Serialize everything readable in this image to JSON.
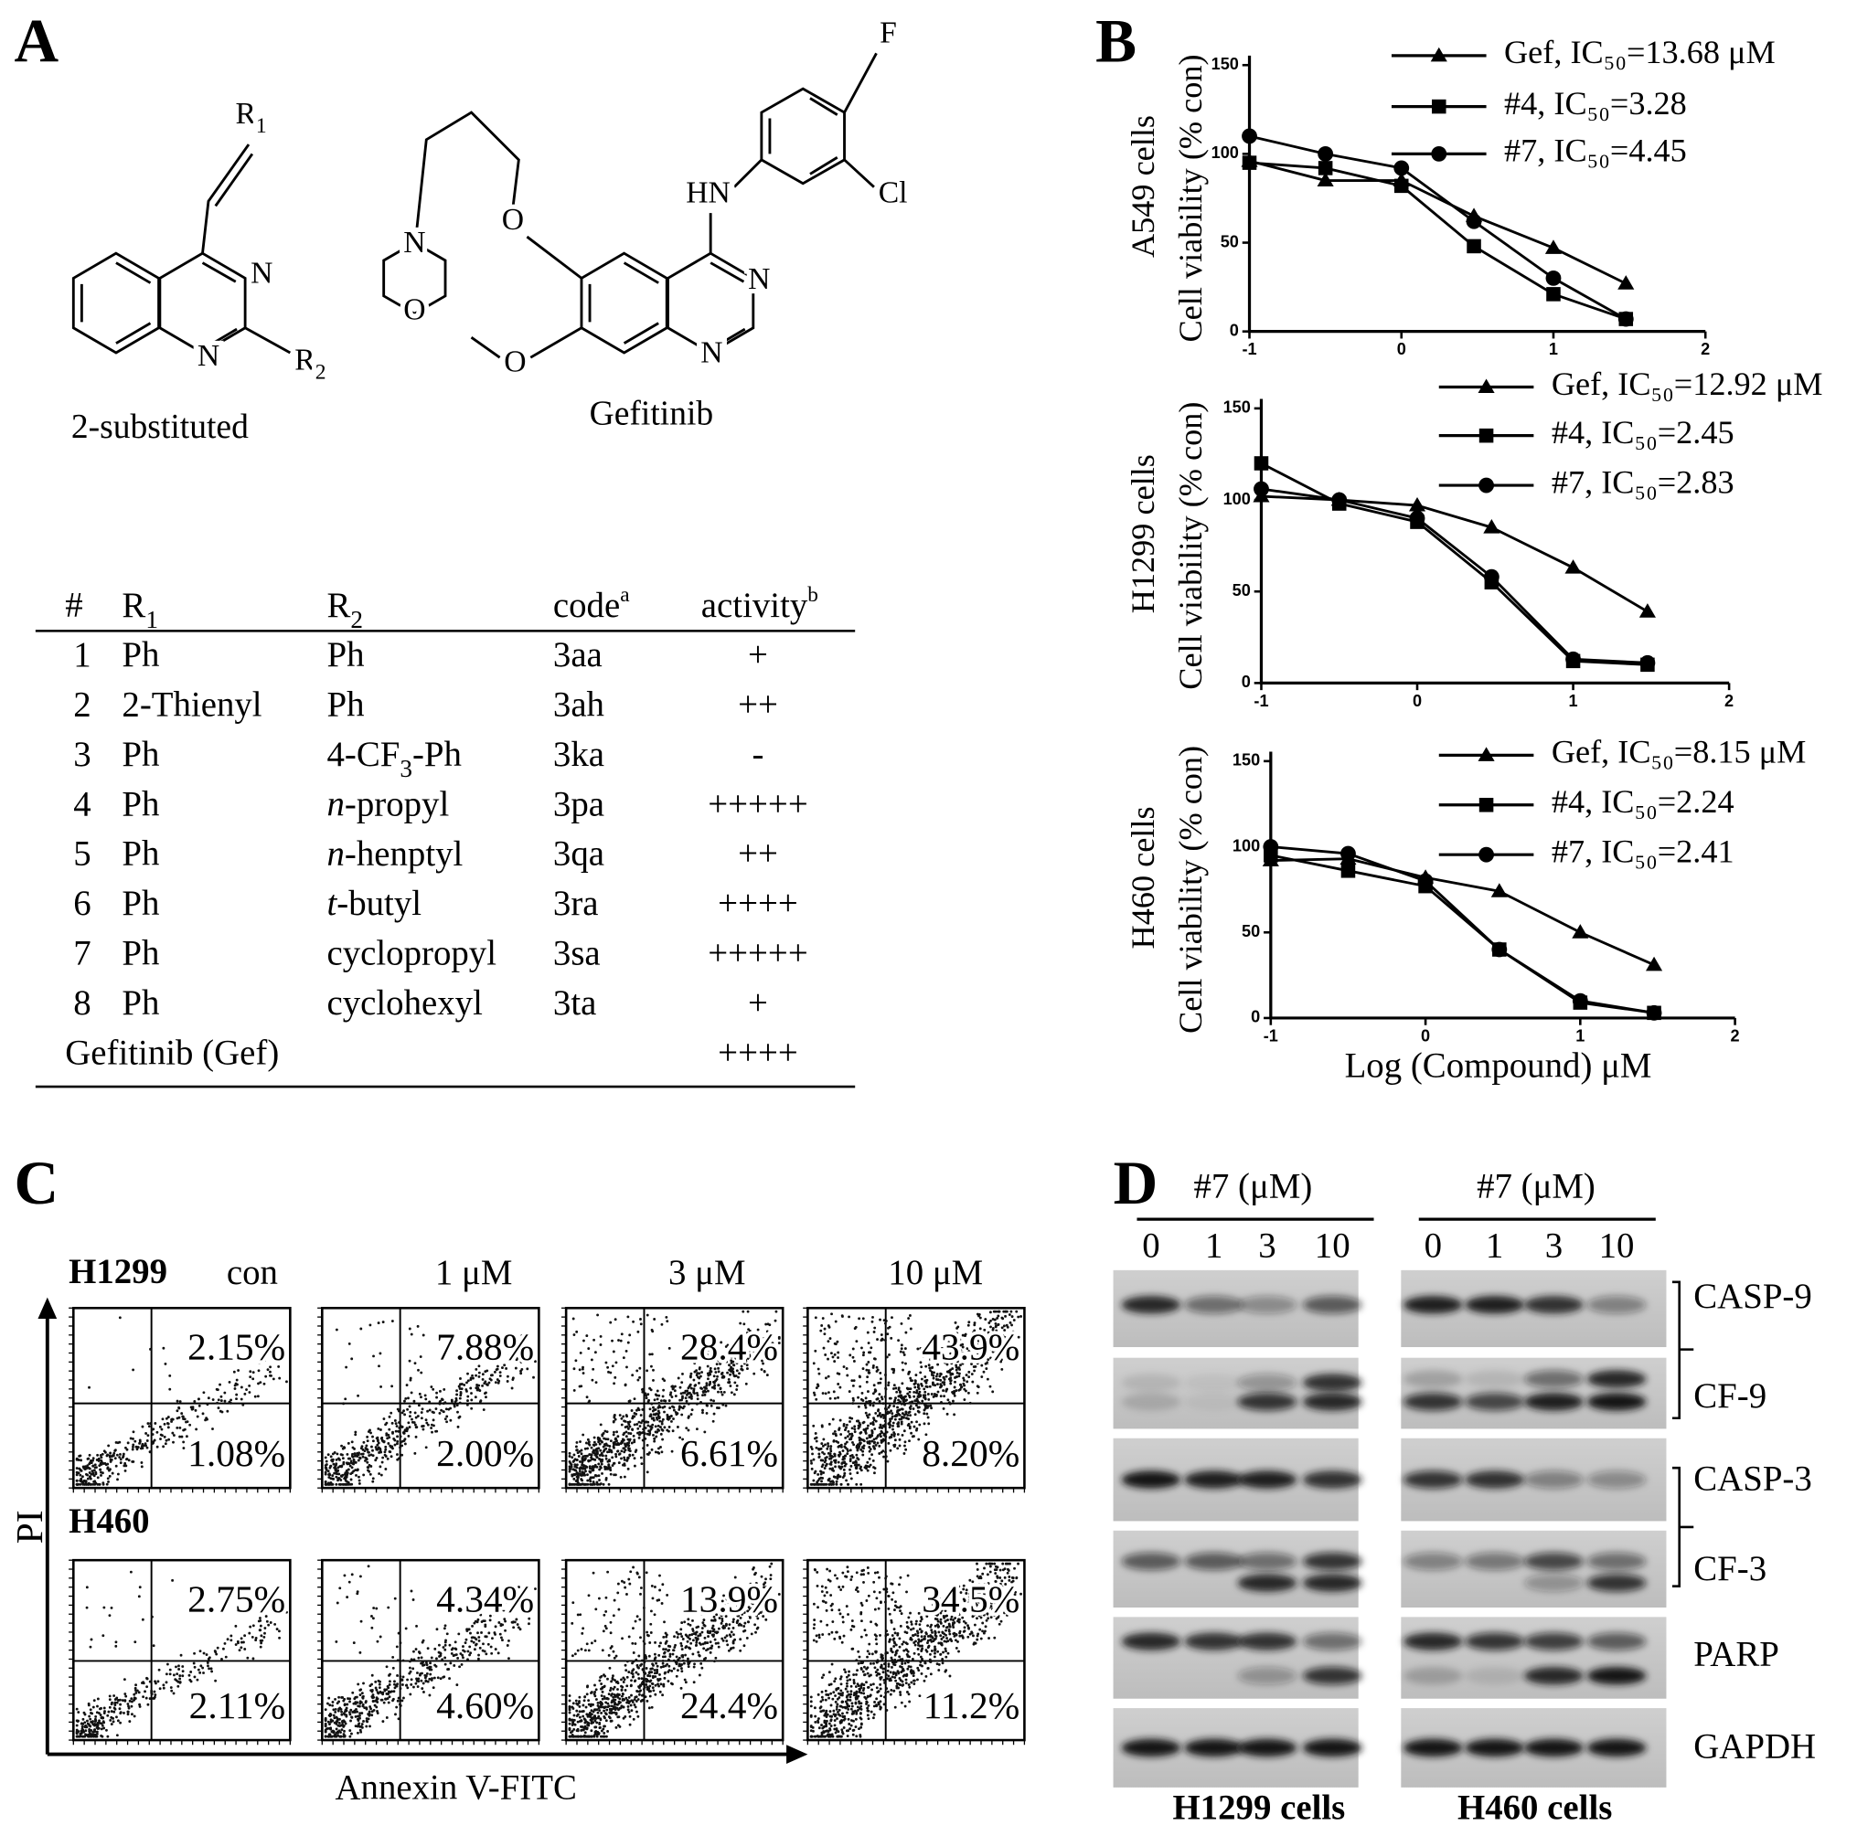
{
  "panel_labels": [
    "A",
    "B",
    "C",
    "D"
  ],
  "panel_a": {
    "structure_2_substituted": {
      "atoms": {
        "r1": {
          "text": "R",
          "sub": "1"
        },
        "n3": "N",
        "n1": "N",
        "r2": {
          "text": "R",
          "sub": "2"
        }
      },
      "caption": "2-substituted"
    },
    "gefitinib_structure": {
      "atoms": [
        "F",
        "HN",
        "Cl",
        "N",
        "N",
        "N",
        "O",
        "O",
        "O"
      ],
      "caption": "Gefitinib"
    },
    "table": {
      "header": [
        "#",
        {
          "text": "R",
          "sub": "1"
        },
        {
          "text": "R",
          "sub": "2"
        },
        {
          "text": "code",
          "sup": "a"
        },
        {
          "text": "activity",
          "sup": "b"
        }
      ],
      "rows": [
        [
          "1",
          "Ph",
          "Ph",
          "3aa",
          "+"
        ],
        [
          "2",
          "2-Thienyl",
          "Ph",
          "3ah",
          "++"
        ],
        [
          "3",
          "Ph",
          {
            "text": "4-CF",
            "sub": "3",
            "after": "-Ph"
          },
          "3ka",
          "-"
        ],
        [
          "4",
          "Ph",
          {
            "italic": "n",
            "text": "-propyl"
          },
          "3pa",
          "+++++"
        ],
        [
          "5",
          "Ph",
          {
            "italic": "n",
            "text": "-henptyl"
          },
          "3qa",
          "++"
        ],
        [
          "6",
          "Ph",
          {
            "italic": "t",
            "text": "-butyl"
          },
          "3ra",
          "++++"
        ],
        [
          "7",
          "Ph",
          "cyclopropyl",
          "3sa",
          "+++++"
        ],
        [
          "8",
          "Ph",
          "cyclohexyl",
          "3ta",
          "+"
        ]
      ],
      "footer_row": {
        "label": "Gefitinib (Gef)",
        "activity": "++++"
      }
    }
  },
  "chart_data": [
    {
      "type": "line",
      "cell_line_label": "A549 cells",
      "y_label": "Cell viability (% con)",
      "x": [
        -1,
        -0.5,
        0,
        0.477,
        1,
        1.477
      ],
      "xlim": [
        -1,
        2
      ],
      "xticks": [
        -1,
        0,
        1,
        2
      ],
      "ylim": [
        0,
        150
      ],
      "yticks": [
        0,
        50,
        100,
        150
      ],
      "series": [
        {
          "name": "Gef, IC₅₀=13.68 μM",
          "color": "#000000",
          "marker": "triangle",
          "values": [
            96,
            85,
            85,
            65,
            47,
            27
          ]
        },
        {
          "name": "#4, IC₅₀=3.28",
          "color": "#000000",
          "marker": "square",
          "values": [
            95,
            92,
            82,
            48,
            21,
            7
          ]
        },
        {
          "name": "#7, IC₅₀=4.45",
          "color": "#000000",
          "marker": "circle",
          "values": [
            110,
            100,
            92,
            62,
            30,
            7
          ]
        }
      ]
    },
    {
      "type": "line",
      "cell_line_label": "H1299 cells",
      "y_label": "Cell viability (% con)",
      "x": [
        -1,
        -0.5,
        0,
        0.477,
        1,
        1.477
      ],
      "xlim": [
        -1,
        2
      ],
      "xticks": [
        -1,
        0,
        1,
        2
      ],
      "ylim": [
        0,
        150
      ],
      "yticks": [
        0,
        50,
        100,
        150
      ],
      "series": [
        {
          "name": "Gef, IC₅₀=12.92 μM",
          "color": "#000000",
          "marker": "triangle",
          "values": [
            102,
            100,
            97,
            85,
            63,
            39
          ]
        },
        {
          "name": "#4, IC₅₀=2.45",
          "color": "#000000",
          "marker": "square",
          "values": [
            120,
            98,
            88,
            55,
            12,
            10
          ]
        },
        {
          "name": "#7, IC₅₀=2.83",
          "color": "#000000",
          "marker": "circle",
          "values": [
            106,
            100,
            90,
            58,
            13,
            11
          ]
        }
      ]
    },
    {
      "type": "line",
      "cell_line_label": "H460 cells",
      "y_label": "Cell viability (% con)",
      "x_label": "Log (Compound) μM",
      "x": [
        -1,
        -0.5,
        0,
        0.477,
        1,
        1.477
      ],
      "xlim": [
        -1,
        2
      ],
      "xticks": [
        -1,
        0,
        1,
        2
      ],
      "ylim": [
        0,
        150
      ],
      "yticks": [
        0,
        50,
        100,
        150
      ],
      "series": [
        {
          "name": "Gef, IC₅₀=8.15 μM",
          "color": "#000000",
          "marker": "triangle",
          "values": [
            92,
            93,
            82,
            74,
            50,
            31
          ]
        },
        {
          "name": "#4, IC₅₀=2.24",
          "color": "#000000",
          "marker": "square",
          "values": [
            95,
            86,
            77,
            40,
            9,
            3
          ]
        },
        {
          "name": "#7, IC₅₀=2.41",
          "color": "#000000",
          "marker": "circle",
          "values": [
            100,
            96,
            80,
            40,
            10,
            3
          ]
        }
      ]
    }
  ],
  "panel_c": {
    "axis_y": "PI",
    "axis_x": "Annexin V-FITC",
    "columns": [
      "con",
      "1 μM",
      "3 μM",
      "10 μM"
    ],
    "rows": [
      {
        "label": "H1299",
        "upper": [
          "2.15%",
          "7.88%",
          "28.4%",
          "43.9%"
        ],
        "lower": [
          "1.08%",
          "2.00%",
          "6.61%",
          "8.20%"
        ]
      },
      {
        "label": "H460",
        "upper": [
          "2.75%",
          "4.34%",
          "13.9%",
          "34.5%"
        ],
        "lower": [
          "2.11%",
          "4.60%",
          "24.4%",
          "11.2%"
        ]
      }
    ]
  },
  "panel_d": {
    "treatment": [
      "#7 (μM)",
      "#7 (μM)"
    ],
    "doses": [
      [
        "0",
        "1",
        "3",
        "10"
      ],
      [
        "0",
        "1",
        "3",
        "10"
      ]
    ],
    "proteins": [
      "CASP-9",
      "CF-9",
      "CASP-3",
      "CF-3",
      "PARP",
      "GAPDH"
    ],
    "cells": [
      "H1299 cells",
      "H460 cells"
    ]
  }
}
